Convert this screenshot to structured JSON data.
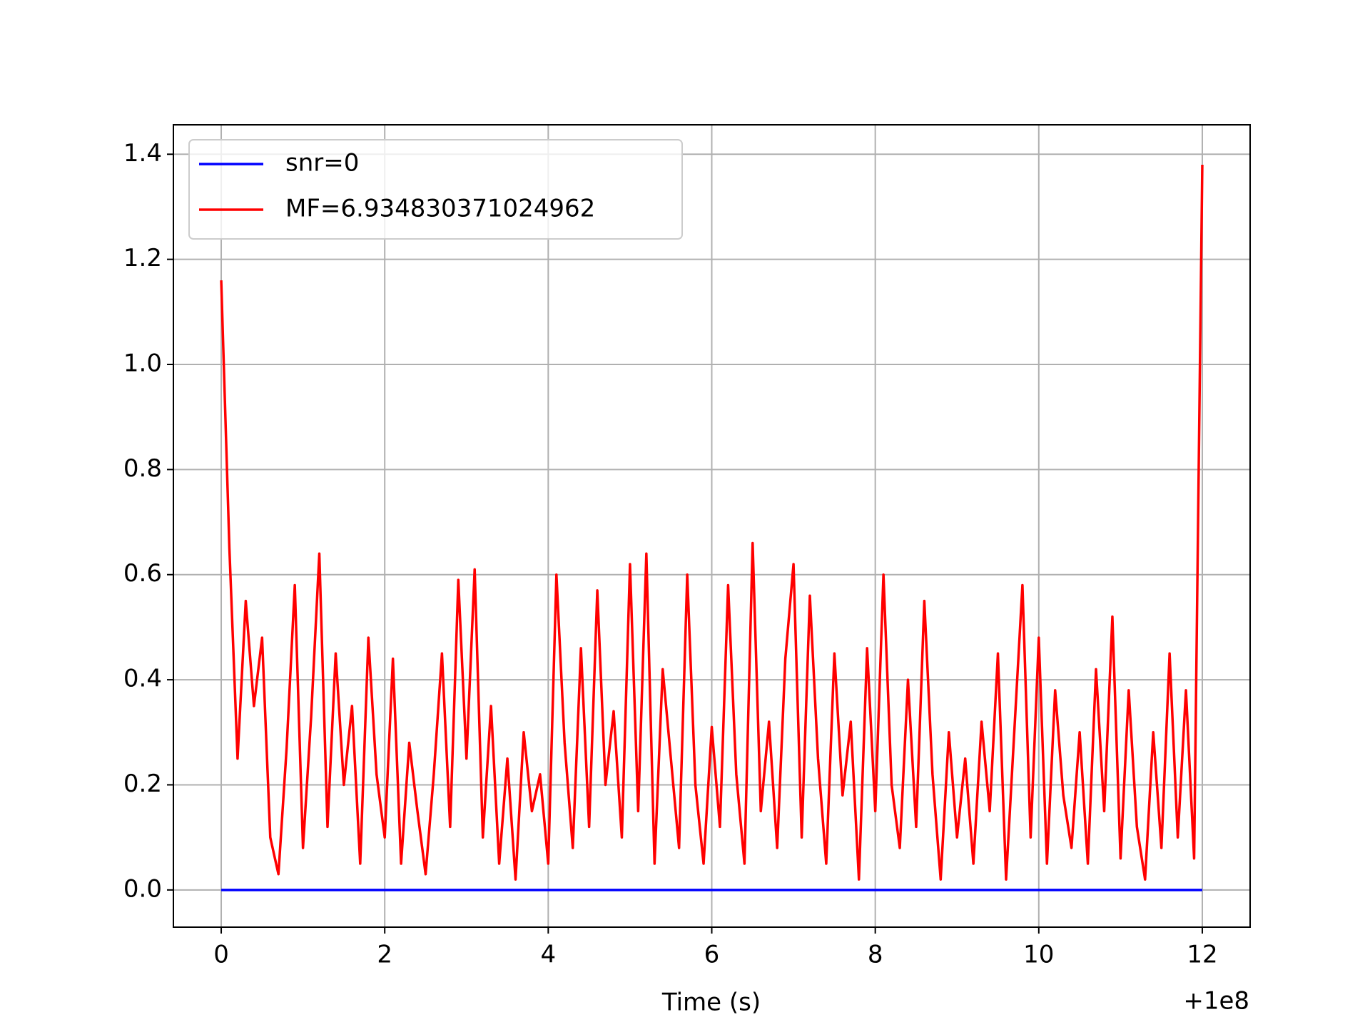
{
  "chart_data": {
    "type": "line",
    "xlabel": "Time (s)",
    "x_offset_label": "+1e8",
    "x": [
      0.0,
      0.1,
      0.2,
      0.3,
      0.4,
      0.5,
      0.6,
      0.7,
      0.8,
      0.9,
      1.0,
      1.1,
      1.2,
      1.3,
      1.4,
      1.5,
      1.6,
      1.7,
      1.8,
      1.9,
      2.0,
      2.1,
      2.2,
      2.3,
      2.4,
      2.5,
      2.6,
      2.7,
      2.8,
      2.9,
      3.0,
      3.1,
      3.2,
      3.3,
      3.4,
      3.5,
      3.6,
      3.7,
      3.8,
      3.9,
      4.0,
      4.1,
      4.2,
      4.3,
      4.4,
      4.5,
      4.6,
      4.7,
      4.8,
      4.9,
      5.0,
      5.1,
      5.2,
      5.3,
      5.4,
      5.5,
      5.6,
      5.7,
      5.8,
      5.9,
      6.0,
      6.1,
      6.2,
      6.3,
      6.4,
      6.5,
      6.6,
      6.7,
      6.8,
      6.9,
      7.0,
      7.1,
      7.2,
      7.3,
      7.4,
      7.5,
      7.6,
      7.7,
      7.8,
      7.9,
      8.0,
      8.1,
      8.2,
      8.3,
      8.4,
      8.5,
      8.6,
      8.7,
      8.8,
      8.9,
      9.0,
      9.1,
      9.2,
      9.3,
      9.4,
      9.5,
      9.6,
      9.7,
      9.8,
      9.9,
      10.0,
      10.1,
      10.2,
      10.3,
      10.4,
      10.5,
      10.6,
      10.7,
      10.8,
      10.9,
      11.0,
      11.1,
      11.2,
      11.3,
      11.4,
      11.5,
      11.6,
      11.7,
      11.8,
      11.9,
      12.0
    ],
    "series": [
      {
        "name": "snr=0",
        "color": "#0000ff",
        "x": [
          0,
          12
        ],
        "values": [
          0,
          0
        ]
      },
      {
        "name": "MF=6.934830371024962",
        "color": "#ff0000",
        "values": [
          1.16,
          0.65,
          0.25,
          0.55,
          0.35,
          0.48,
          0.1,
          0.03,
          0.27,
          0.58,
          0.08,
          0.33,
          0.64,
          0.12,
          0.45,
          0.2,
          0.35,
          0.05,
          0.48,
          0.22,
          0.1,
          0.44,
          0.05,
          0.28,
          0.15,
          0.03,
          0.22,
          0.45,
          0.12,
          0.59,
          0.25,
          0.61,
          0.1,
          0.35,
          0.05,
          0.25,
          0.02,
          0.3,
          0.15,
          0.22,
          0.05,
          0.6,
          0.28,
          0.08,
          0.46,
          0.12,
          0.57,
          0.2,
          0.34,
          0.1,
          0.62,
          0.15,
          0.64,
          0.05,
          0.42,
          0.25,
          0.08,
          0.6,
          0.2,
          0.05,
          0.31,
          0.12,
          0.58,
          0.22,
          0.05,
          0.66,
          0.15,
          0.32,
          0.08,
          0.44,
          0.62,
          0.1,
          0.56,
          0.25,
          0.05,
          0.45,
          0.18,
          0.32,
          0.02,
          0.46,
          0.15,
          0.6,
          0.2,
          0.08,
          0.4,
          0.12,
          0.55,
          0.22,
          0.02,
          0.3,
          0.1,
          0.25,
          0.05,
          0.32,
          0.15,
          0.45,
          0.02,
          0.3,
          0.58,
          0.1,
          0.48,
          0.05,
          0.38,
          0.18,
          0.08,
          0.3,
          0.05,
          0.42,
          0.15,
          0.52,
          0.06,
          0.38,
          0.12,
          0.02,
          0.3,
          0.08,
          0.45,
          0.1,
          0.38,
          0.06,
          1.38
        ]
      }
    ],
    "xlim": [
      -0.585,
      12.585
    ],
    "ylim": [
      -0.0708,
      1.456
    ],
    "xticks": [
      0,
      2,
      4,
      6,
      8,
      10,
      12
    ],
    "yticks": [
      {
        "value": 0,
        "label": "0.0"
      },
      0.2,
      0.4,
      0.6,
      0.8,
      {
        "value": 1,
        "label": "1.0"
      },
      1.2,
      1.4
    ],
    "grid": true,
    "legend": "upper left"
  }
}
